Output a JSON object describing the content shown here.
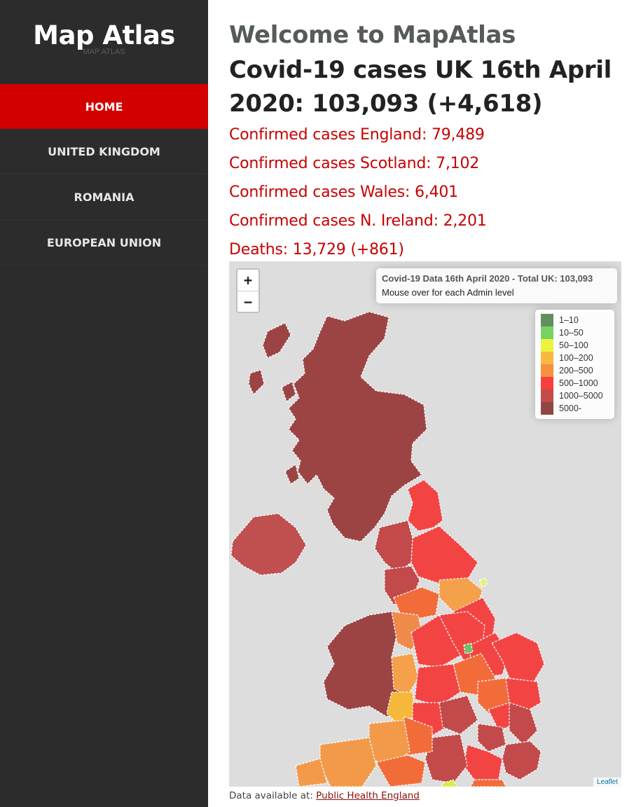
{
  "sidebar": {
    "brand_title": "Map Atlas",
    "brand_subtitle": "MAP ATLAS",
    "items": [
      {
        "label": "HOME",
        "active": true
      },
      {
        "label": "UNITED KINGDOM",
        "active": false
      },
      {
        "label": "ROMANIA",
        "active": false
      },
      {
        "label": "EUROPEAN UNION",
        "active": false
      }
    ]
  },
  "main": {
    "welcome": "Welcome to MapAtlas",
    "headline": "Covid-19 cases UK 16th April 2020: 103,093 (+4,618)",
    "stats": [
      "Confirmed cases England: 79,489",
      "Confirmed cases Scotland: 7,102",
      "Confirmed cases Wales: 6,401",
      "Confirmed cases N. Ireland: 2,201",
      "Deaths: 13,729 (+861)"
    ]
  },
  "map": {
    "zoom_in": "+",
    "zoom_out": "−",
    "info_title": "Covid-19 Data 16th April 2020 - Total UK: 103,093",
    "info_hint": "Mouse over for each Admin level",
    "legend": [
      {
        "label": "1–10",
        "color": "#2e6b2e"
      },
      {
        "label": "10–50",
        "color": "#4cc430"
      },
      {
        "label": "50–100",
        "color": "#e6f000"
      },
      {
        "label": "100–200",
        "color": "#f5a300"
      },
      {
        "label": "200–500",
        "color": "#f26c00"
      },
      {
        "label": "500–1000",
        "color": "#f50000"
      },
      {
        "label": "1000–5000",
        "color": "#b30f0f"
      },
      {
        "label": "5000-",
        "color": "#6e0a0a"
      }
    ],
    "attribution": "Leaflet"
  },
  "footer": {
    "source_prefix": "Data available at: ",
    "source_link": "Public Health England"
  }
}
